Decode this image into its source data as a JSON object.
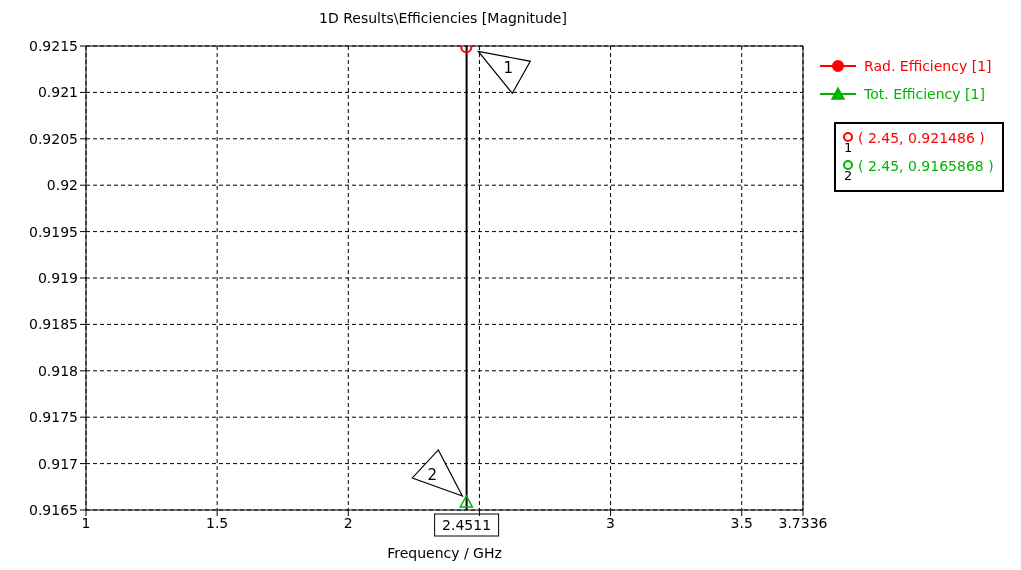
{
  "chart_data": {
    "type": "line",
    "title": "1D Results\\Efficiencies [Magnitude]",
    "xlabel": "Frequency / GHz",
    "xlim": [
      1,
      3.7336
    ],
    "xticks": [
      1,
      1.5,
      2,
      {
        "value": 2.5,
        "label": null
      },
      3,
      3.5,
      3.7336
    ],
    "ylim": [
      0.9165,
      0.9215
    ],
    "yticks": [
      0.9165,
      0.917,
      0.9175,
      0.918,
      0.9185,
      0.919,
      0.9195,
      0.92,
      0.9205,
      0.921,
      0.9215
    ],
    "grid": true,
    "legend": "top right",
    "series": [
      {
        "name": "Rad. Efficiency [1]",
        "color": "#ff0000",
        "marker": "circle",
        "x": [
          2.45
        ],
        "values": [
          0.921486
        ]
      },
      {
        "name": "Tot. Efficiency [1]",
        "color": "#00b400",
        "marker": "triangle",
        "x": [
          2.45
        ],
        "values": [
          0.9165868
        ]
      }
    ],
    "ref_lines": [
      {
        "axis": "x",
        "value": 2.4511,
        "label": "2.4511",
        "color": "#000000"
      }
    ],
    "annotations": [
      {
        "text": "1",
        "x": 2.45,
        "y": 0.921486
      },
      {
        "text": "2",
        "x": 2.45,
        "y": 0.9165868
      },
      "( 2.45, 0.921486 )",
      "( 2.45, 0.9165868 )"
    ]
  }
}
